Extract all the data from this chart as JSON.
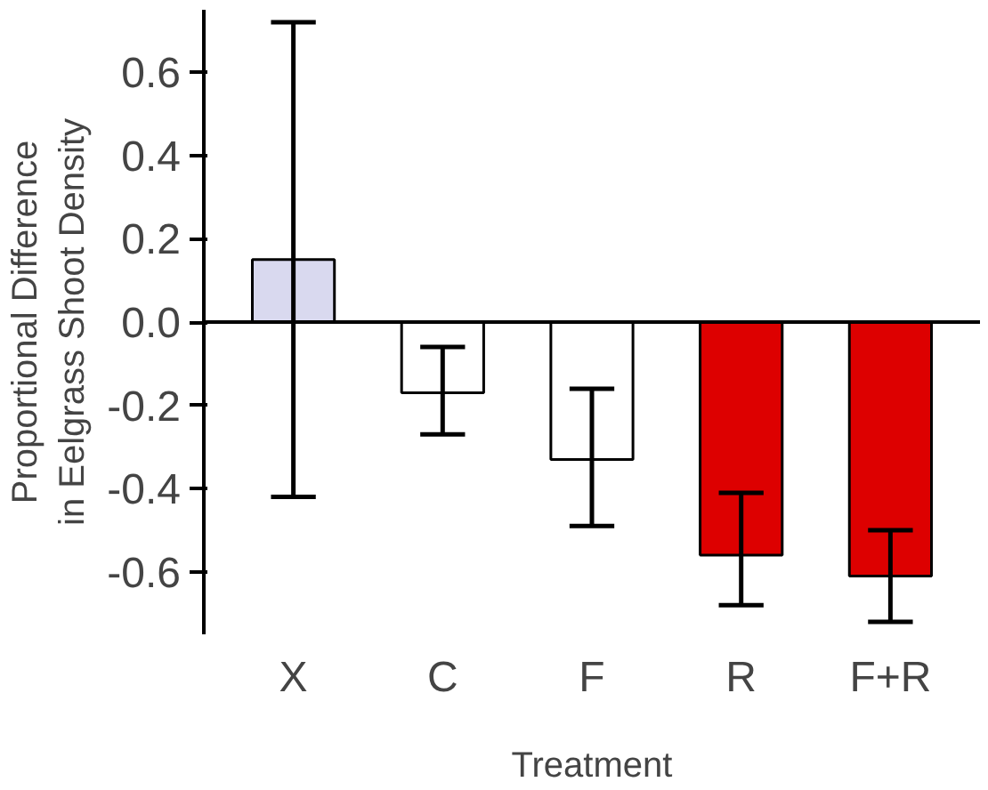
{
  "chart_data": {
    "type": "bar",
    "xlabel": "Treatment",
    "ylabel": "Proportional Difference\nin Eelgrass Shoot Density",
    "categories": [
      "X",
      "C",
      "F",
      "R",
      "F+R"
    ],
    "values": [
      0.15,
      -0.17,
      -0.33,
      -0.56,
      -0.61
    ],
    "colors": [
      "#d9d9ef",
      "#ffffff",
      "#ffffff",
      "#dd0000",
      "#dd0000"
    ],
    "errors": [
      [
        -0.42,
        0.72
      ],
      [
        -0.27,
        -0.06
      ],
      [
        -0.49,
        -0.16
      ],
      [
        -0.68,
        -0.41
      ],
      [
        -0.72,
        -0.5
      ]
    ],
    "ylim": [
      -0.75,
      0.75
    ],
    "yticks": [
      {
        "value": -0.6,
        "label": "-0.6"
      },
      {
        "value": -0.4,
        "label": "-0.4"
      },
      {
        "value": -0.2,
        "label": "-0.2"
      },
      {
        "value": 0,
        "label": "0.0"
      },
      {
        "value": 0.2,
        "label": "0.2"
      },
      {
        "value": 0.4,
        "label": "0.4"
      },
      {
        "value": 0.6,
        "label": "0.6"
      }
    ],
    "ref_lines": [
      {
        "axis": "y",
        "value": 0
      }
    ]
  }
}
